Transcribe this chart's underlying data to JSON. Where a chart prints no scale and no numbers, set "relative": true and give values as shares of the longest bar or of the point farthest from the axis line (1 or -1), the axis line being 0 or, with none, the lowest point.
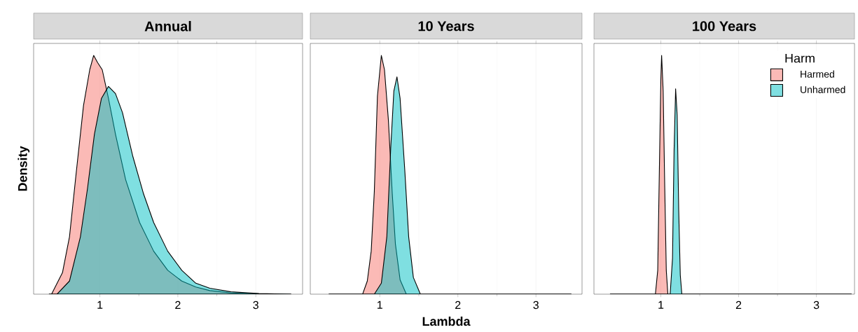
{
  "chart_data": [
    {
      "type": "area",
      "title": "Annual",
      "ylabel": "Density",
      "relative": true,
      "xlim": [
        0.15,
        3.6
      ],
      "xticks": [
        1,
        2,
        3
      ],
      "grid": true,
      "tick_labels": "x",
      "legend": false,
      "series": [
        {
          "color": "#f8766d",
          "x": [
            0.35,
            0.38,
            0.52,
            0.61,
            0.7,
            0.79,
            0.87,
            0.92,
            0.97,
            1.03,
            1.11,
            1.2,
            1.33,
            1.51,
            1.69,
            1.87,
            2.05,
            2.23,
            2.41,
            2.68,
            3.2,
            3.45
          ],
          "values": [
            0,
            0,
            0.09,
            0.24,
            0.52,
            0.79,
            0.94,
            1.0,
            0.97,
            0.94,
            0.82,
            0.67,
            0.48,
            0.3,
            0.18,
            0.1,
            0.055,
            0.03,
            0.015,
            0.005,
            0,
            0
          ]
        },
        {
          "color": "#00bfc4",
          "x": [
            0.35,
            0.45,
            0.61,
            0.75,
            0.84,
            0.93,
            1.02,
            1.11,
            1.2,
            1.29,
            1.42,
            1.56,
            1.69,
            1.87,
            2.05,
            2.23,
            2.41,
            2.68,
            3.04,
            3.45
          ],
          "values": [
            0,
            0,
            0.055,
            0.24,
            0.44,
            0.67,
            0.82,
            0.87,
            0.84,
            0.76,
            0.58,
            0.42,
            0.3,
            0.18,
            0.1,
            0.046,
            0.025,
            0.01,
            0.003,
            0
          ]
        }
      ]
    },
    {
      "type": "area",
      "title": "10 Years",
      "xlabel": "Lambda",
      "relative": true,
      "xlim": [
        0.11,
        3.59
      ],
      "xticks": [
        1,
        2,
        3
      ],
      "grid": true,
      "tick_labels": "x",
      "legend": false,
      "series": [
        {
          "color": "#f8766d",
          "x": [
            0.35,
            0.78,
            0.84,
            0.89,
            0.93,
            0.97,
            1.02,
            1.06,
            1.11,
            1.16,
            1.2,
            1.26,
            1.34,
            3.45
          ],
          "values": [
            0,
            0,
            0.055,
            0.18,
            0.43,
            0.83,
            1.0,
            0.94,
            0.73,
            0.42,
            0.21,
            0.06,
            0,
            0
          ]
        },
        {
          "color": "#00bfc4",
          "x": [
            0.35,
            0.93,
            1.02,
            1.09,
            1.14,
            1.18,
            1.22,
            1.26,
            1.32,
            1.37,
            1.43,
            1.52,
            3.45
          ],
          "values": [
            0,
            0,
            0.046,
            0.24,
            0.61,
            0.85,
            0.91,
            0.82,
            0.52,
            0.24,
            0.07,
            0,
            0
          ]
        }
      ]
    },
    {
      "type": "area",
      "title": "100 Years",
      "legend_title": "Harm",
      "relative": true,
      "xlim": [
        0.14,
        3.49
      ],
      "xticks": [
        1,
        2,
        3
      ],
      "grid": true,
      "tick_labels": "x",
      "legend": "top right",
      "series": [
        {
          "name": "Harmed",
          "color": "#f8766d",
          "x": [
            0.35,
            0.93,
            0.96,
            0.98,
            1.0,
            1.01,
            1.03,
            1.05,
            1.07,
            1.09,
            3.45
          ],
          "values": [
            0,
            0,
            0.1,
            0.5,
            0.9,
            1.0,
            0.85,
            0.45,
            0.1,
            0,
            0
          ]
        },
        {
          "name": "Unharmed",
          "color": "#00bfc4",
          "x": [
            0.35,
            1.12,
            1.15,
            1.17,
            1.19,
            1.21,
            1.23,
            1.25,
            1.27,
            3.45
          ],
          "values": [
            0,
            0,
            0.15,
            0.6,
            0.86,
            0.75,
            0.35,
            0.08,
            0,
            0
          ]
        }
      ]
    }
  ]
}
